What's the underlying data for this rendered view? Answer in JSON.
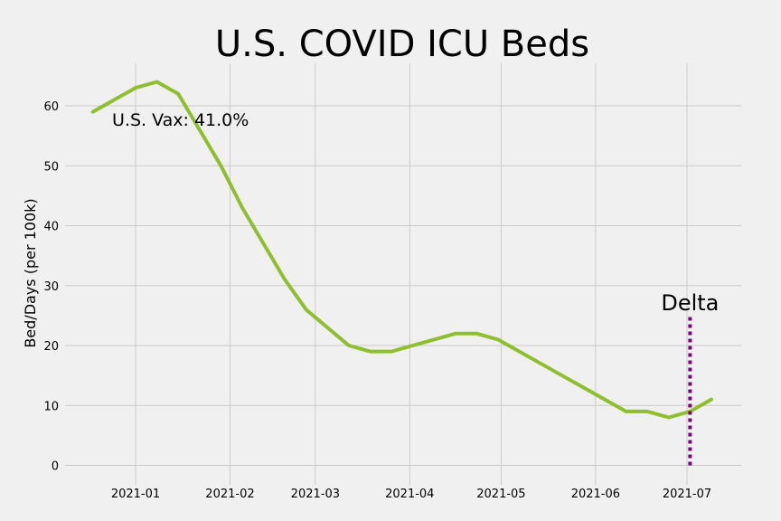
{
  "chart_data": {
    "type": "line",
    "title": "U.S. COVID ICU Beds",
    "xlabel": "",
    "ylabel": "Bed/Days (per 100k)",
    "x_tick_labels": [
      "2021-01",
      "2021-02",
      "2021-03",
      "2021-04",
      "2021-05",
      "2021-06",
      "2021-07"
    ],
    "y_ticks": [
      0,
      10,
      20,
      30,
      40,
      50,
      60
    ],
    "ylim": [
      -4,
      67
    ],
    "xlim": [
      "2020-12-24",
      "2021-07-19"
    ],
    "grid": true,
    "series": [
      {
        "color": "#8fbf2e",
        "x": [
          "2020-12-18",
          "2021-01-01",
          "2021-01-08",
          "2021-01-15",
          "2021-01-29",
          "2021-02-05",
          "2021-02-12",
          "2021-02-19",
          "2021-02-26",
          "2021-03-12",
          "2021-03-19",
          "2021-03-26",
          "2021-04-16",
          "2021-04-23",
          "2021-04-30",
          "2021-06-11",
          "2021-06-18",
          "2021-06-25",
          "2021-07-02",
          "2021-07-09"
        ],
        "values": [
          59,
          63,
          64,
          62,
          50,
          43,
          37,
          31,
          26,
          20,
          19,
          19,
          22,
          22,
          21,
          9,
          9,
          8,
          9,
          11
        ]
      }
    ],
    "annotations": [
      {
        "text": "U.S. Vax: 41.0%",
        "x": "2020-12-24",
        "y": 57
      },
      {
        "text": "Delta",
        "x": "2021-07-02",
        "y": 25
      }
    ],
    "vline": {
      "x": "2021-07-02",
      "y_from": 0,
      "y_to": 25,
      "color": "#800080",
      "style": "dotted"
    }
  }
}
